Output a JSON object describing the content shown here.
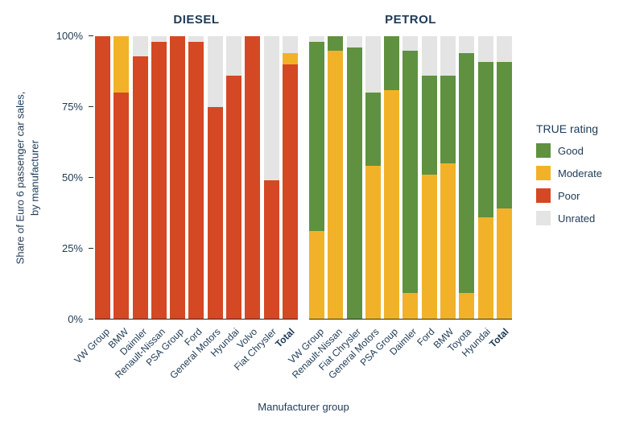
{
  "chart_data": {
    "type": "bar",
    "stacked": true,
    "orientation": "vertical",
    "ylabel_lines": [
      "Share of Euro 6 passenger car sales,",
      "by manufacturer"
    ],
    "xlabel": "Manufacturer group",
    "ylim": [
      0,
      100
    ],
    "grid": false,
    "yticks": [
      {
        "label": "0%",
        "value": 0
      },
      {
        "label": "25%",
        "value": 25
      },
      {
        "label": "50%",
        "value": 50
      },
      {
        "label": "75%",
        "value": 75
      },
      {
        "label": "100%",
        "value": 100
      }
    ],
    "colors": {
      "Good": "#5f9140",
      "Moderate": "#f1b229",
      "Poor": "#d44823",
      "Unrated": "#e4e4e4"
    },
    "legend": {
      "title": "TRUE rating",
      "position": "right",
      "entries": [
        {
          "label": "Good",
          "color": "#5f9140"
        },
        {
          "label": "Moderate",
          "color": "#f1b229"
        },
        {
          "label": "Poor",
          "color": "#d44823"
        },
        {
          "label": "Unrated",
          "color": "#e4e4e4"
        }
      ]
    },
    "panels": [
      {
        "title": "DIESEL",
        "bars": [
          {
            "label": "VW Group",
            "segments": [
              {
                "rating": "Poor",
                "value": 100
              }
            ]
          },
          {
            "label": "BMW",
            "segments": [
              {
                "rating": "Poor",
                "value": 80
              },
              {
                "rating": "Moderate",
                "value": 20
              }
            ]
          },
          {
            "label": "Daimler",
            "segments": [
              {
                "rating": "Poor",
                "value": 93
              },
              {
                "rating": "Unrated",
                "value": 7
              }
            ]
          },
          {
            "label": "Renault-Nissan",
            "segments": [
              {
                "rating": "Poor",
                "value": 98
              },
              {
                "rating": "Unrated",
                "value": 2
              }
            ]
          },
          {
            "label": "PSA Group",
            "segments": [
              {
                "rating": "Poor",
                "value": 100
              }
            ]
          },
          {
            "label": "Ford",
            "segments": [
              {
                "rating": "Poor",
                "value": 98
              },
              {
                "rating": "Unrated",
                "value": 2
              }
            ]
          },
          {
            "label": "General Motors",
            "segments": [
              {
                "rating": "Poor",
                "value": 75
              },
              {
                "rating": "Unrated",
                "value": 25
              }
            ]
          },
          {
            "label": "Hyundai",
            "segments": [
              {
                "rating": "Poor",
                "value": 86
              },
              {
                "rating": "Unrated",
                "value": 14
              }
            ]
          },
          {
            "label": "Volvo",
            "segments": [
              {
                "rating": "Poor",
                "value": 100
              }
            ]
          },
          {
            "label": "Fiat Chrysler",
            "segments": [
              {
                "rating": "Poor",
                "value": 49
              },
              {
                "rating": "Unrated",
                "value": 51
              }
            ]
          },
          {
            "label": "Total",
            "bold": true,
            "segments": [
              {
                "rating": "Poor",
                "value": 90
              },
              {
                "rating": "Moderate",
                "value": 4
              },
              {
                "rating": "Unrated",
                "value": 6
              }
            ]
          }
        ]
      },
      {
        "title": "PETROL",
        "bars": [
          {
            "label": "VW Group",
            "segments": [
              {
                "rating": "Moderate",
                "value": 31
              },
              {
                "rating": "Good",
                "value": 67
              },
              {
                "rating": "Unrated",
                "value": 2
              }
            ]
          },
          {
            "label": "Renault-Nissan",
            "segments": [
              {
                "rating": "Moderate",
                "value": 95
              },
              {
                "rating": "Good",
                "value": 5
              }
            ]
          },
          {
            "label": "Fiat Chrysler",
            "segments": [
              {
                "rating": "Good",
                "value": 96
              },
              {
                "rating": "Unrated",
                "value": 4
              }
            ]
          },
          {
            "label": "General Motors",
            "segments": [
              {
                "rating": "Moderate",
                "value": 54
              },
              {
                "rating": "Good",
                "value": 26
              },
              {
                "rating": "Unrated",
                "value": 20
              }
            ]
          },
          {
            "label": "PSA Group",
            "segments": [
              {
                "rating": "Moderate",
                "value": 81
              },
              {
                "rating": "Good",
                "value": 19
              }
            ]
          },
          {
            "label": "Daimler",
            "segments": [
              {
                "rating": "Moderate",
                "value": 9
              },
              {
                "rating": "Good",
                "value": 86
              },
              {
                "rating": "Unrated",
                "value": 5
              }
            ]
          },
          {
            "label": "Ford",
            "segments": [
              {
                "rating": "Moderate",
                "value": 51
              },
              {
                "rating": "Good",
                "value": 35
              },
              {
                "rating": "Unrated",
                "value": 14
              }
            ]
          },
          {
            "label": "BMW",
            "segments": [
              {
                "rating": "Moderate",
                "value": 55
              },
              {
                "rating": "Good",
                "value": 31
              },
              {
                "rating": "Unrated",
                "value": 14
              }
            ]
          },
          {
            "label": "Toyota",
            "segments": [
              {
                "rating": "Moderate",
                "value": 9
              },
              {
                "rating": "Good",
                "value": 85
              },
              {
                "rating": "Unrated",
                "value": 6
              }
            ]
          },
          {
            "label": "Hyundai",
            "segments": [
              {
                "rating": "Moderate",
                "value": 36
              },
              {
                "rating": "Good",
                "value": 55
              },
              {
                "rating": "Unrated",
                "value": 9
              }
            ]
          },
          {
            "label": "Total",
            "bold": true,
            "segments": [
              {
                "rating": "Moderate",
                "value": 39
              },
              {
                "rating": "Good",
                "value": 52
              },
              {
                "rating": "Unrated",
                "value": 9
              }
            ]
          }
        ]
      }
    ]
  }
}
